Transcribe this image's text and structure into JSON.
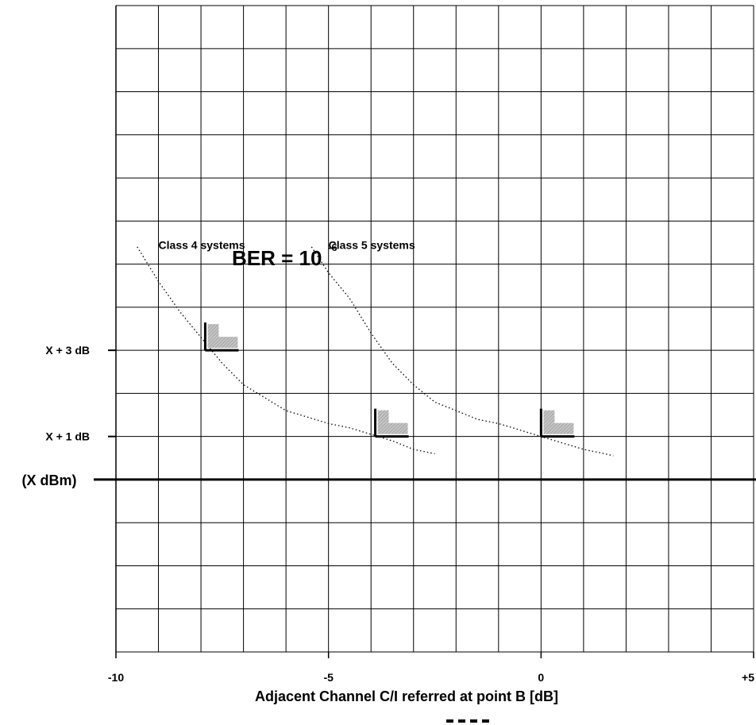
{
  "chart_data": {
    "type": "line",
    "title": "BER = 10",
    "title_superscript": "-6",
    "xlabel": "Adjacent Channel C/I referred at point B [dB]",
    "ylabel": "",
    "xlim": [
      -10,
      5
    ],
    "ylim": [
      -4,
      11
    ],
    "grid": true,
    "x_tick_labels": [
      {
        "value": -10,
        "label": "-10"
      },
      {
        "value": -5,
        "label": "-5"
      },
      {
        "value": 0,
        "label": "0"
      },
      {
        "value": 5,
        "label": "+5"
      }
    ],
    "y_tick_labels": [
      {
        "value": 3,
        "label": "X + 3 dB"
      },
      {
        "value": 1,
        "label": "X + 1 dB"
      }
    ],
    "reference_line": {
      "value": 0,
      "label": "(X dBm)"
    },
    "series": [
      {
        "name": "Class 4 systems",
        "style": "dotted",
        "x": [
          -9.5,
          -9.0,
          -8.5,
          -8.0,
          -7.5,
          -7.0,
          -6.5,
          -6.0,
          -5.5,
          -5.0,
          -4.5,
          -4.0,
          -3.5,
          -3.0,
          -2.5
        ],
        "y": [
          5.4,
          4.6,
          3.9,
          3.3,
          2.7,
          2.2,
          1.9,
          1.6,
          1.45,
          1.3,
          1.2,
          1.05,
          0.9,
          0.7,
          0.6
        ]
      },
      {
        "name": "Class 5 systems",
        "style": "dotted",
        "x": [
          -5.4,
          -5.0,
          -4.5,
          -4.0,
          -3.5,
          -3.0,
          -2.5,
          -2.0,
          -1.5,
          -1.0,
          -0.5,
          0.0,
          0.5,
          1.0,
          1.5,
          1.7
        ],
        "y": [
          5.4,
          4.8,
          4.2,
          3.4,
          2.7,
          2.2,
          1.8,
          1.6,
          1.4,
          1.3,
          1.15,
          1.0,
          0.85,
          0.7,
          0.6,
          0.55
        ]
      }
    ],
    "series_labels": [
      {
        "text": "Class 4 systems",
        "x": -9.0,
        "y": 5.35
      },
      {
        "text": "Class 5 systems",
        "x": -5.0,
        "y": 5.35
      }
    ],
    "markers": [
      {
        "series": "Class 4 systems",
        "x": -7.9,
        "y": 3.0
      },
      {
        "series": "Class 4 systems",
        "x": -3.9,
        "y": 1.0
      },
      {
        "series": "Class 5 systems",
        "x": 0.0,
        "y": 1.0
      }
    ],
    "colors": {
      "line": "#000000",
      "grid": "#000000",
      "marker_fill": "#b8b8b8",
      "marker_hatch": "#7a7a7a"
    }
  }
}
